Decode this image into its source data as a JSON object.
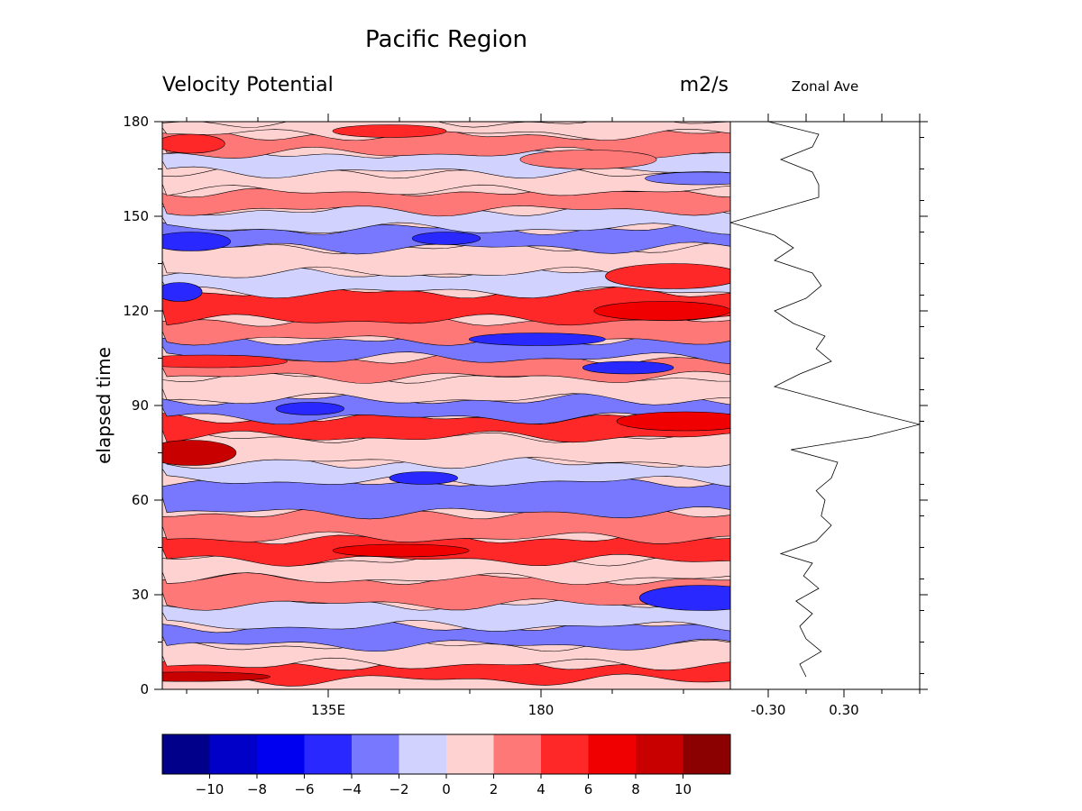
{
  "chart_data": [
    {
      "type": "heatmap",
      "title": "Pacific Region",
      "left_subtitle": "Velocity Potential",
      "units": "m2/s",
      "ylabel": "elapsed time",
      "ylim": [
        0,
        180
      ],
      "yticks": [
        "0",
        "30",
        "60",
        "90",
        "120",
        "150",
        "180"
      ],
      "xticks": [
        "135E",
        "180"
      ],
      "colorbar": {
        "levels": [
          -12,
          -10,
          -8,
          -6,
          -4,
          -2,
          0,
          2,
          4,
          6,
          8,
          10,
          12
        ],
        "labels": [
          "−10",
          "−8",
          "−6",
          "−4",
          "−2",
          "0",
          "2",
          "4",
          "6",
          "8",
          "10"
        ],
        "colors": [
          "#00008b",
          "#0000c8",
          "#0000f0",
          "#2828ff",
          "#7878ff",
          "#d2d2ff",
          "#ffd2d2",
          "#ff7878",
          "#ff2828",
          "#f00000",
          "#c80000",
          "#8b0000"
        ]
      },
      "bands": [
        {
          "t0": 3,
          "t1": 8,
          "v": 5
        },
        {
          "t0": 8,
          "t1": 14,
          "v": 1
        },
        {
          "t0": 14,
          "t1": 20,
          "v": -3
        },
        {
          "t0": 20,
          "t1": 27,
          "v": -1
        },
        {
          "t0": 27,
          "t1": 35,
          "v": 3
        },
        {
          "t0": 35,
          "t1": 41,
          "v": 1
        },
        {
          "t0": 41,
          "t1": 48,
          "v": 5
        },
        {
          "t0": 48,
          "t1": 56,
          "v": 3
        },
        {
          "t0": 56,
          "t1": 66,
          "v": -3
        },
        {
          "t0": 66,
          "t1": 72,
          "v": -1
        },
        {
          "t0": 72,
          "t1": 80,
          "v": 1
        },
        {
          "t0": 80,
          "t1": 86,
          "v": 5
        },
        {
          "t0": 86,
          "t1": 92,
          "v": -3
        },
        {
          "t0": 92,
          "t1": 99,
          "v": 1
        },
        {
          "t0": 99,
          "t1": 105,
          "v": 3
        },
        {
          "t0": 105,
          "t1": 111,
          "v": -3
        },
        {
          "t0": 111,
          "t1": 117,
          "v": 3
        },
        {
          "t0": 117,
          "t1": 126,
          "v": 5
        },
        {
          "t0": 126,
          "t1": 132,
          "v": -1
        },
        {
          "t0": 132,
          "t1": 140,
          "v": 1
        },
        {
          "t0": 140,
          "t1": 146,
          "v": -3
        },
        {
          "t0": 146,
          "t1": 152,
          "v": -1
        },
        {
          "t0": 152,
          "t1": 158,
          "v": 3
        },
        {
          "t0": 158,
          "t1": 164,
          "v": 1
        },
        {
          "t0": 164,
          "t1": 170,
          "v": -1
        },
        {
          "t0": 170,
          "t1": 176,
          "v": 3
        },
        {
          "t0": 176,
          "t1": 180,
          "v": 1
        }
      ],
      "blobs": [
        {
          "x": 0.05,
          "t": 75,
          "rx": 0.08,
          "rt": 4,
          "v": 9
        },
        {
          "x": 0.92,
          "t": 85,
          "rx": 0.12,
          "rt": 3,
          "v": 7
        },
        {
          "x": 0.88,
          "t": 120,
          "rx": 0.12,
          "rt": 3,
          "v": 7
        },
        {
          "x": 0.9,
          "t": 131,
          "rx": 0.12,
          "rt": 4,
          "v": 5
        },
        {
          "x": 0.03,
          "t": 126,
          "rx": 0.04,
          "rt": 3,
          "v": -5
        },
        {
          "x": 0.05,
          "t": 142,
          "rx": 0.07,
          "rt": 3,
          "v": -5
        },
        {
          "x": 0.5,
          "t": 143,
          "rx": 0.06,
          "rt": 2,
          "v": -5
        },
        {
          "x": 0.66,
          "t": 111,
          "rx": 0.12,
          "rt": 2,
          "v": -5
        },
        {
          "x": 0.82,
          "t": 102,
          "rx": 0.08,
          "rt": 2,
          "v": -5
        },
        {
          "x": 0.26,
          "t": 89,
          "rx": 0.06,
          "rt": 2,
          "v": -5
        },
        {
          "x": 0.46,
          "t": 67,
          "rx": 0.06,
          "rt": 2,
          "v": -5
        },
        {
          "x": 0.95,
          "t": 29,
          "rx": 0.11,
          "rt": 4,
          "v": -5
        },
        {
          "x": 0.95,
          "t": 162,
          "rx": 0.1,
          "rt": 2,
          "v": -3
        },
        {
          "x": 0.42,
          "t": 44,
          "rx": 0.12,
          "rt": 2,
          "v": 7
        },
        {
          "x": 0.05,
          "t": 173,
          "rx": 0.06,
          "rt": 3,
          "v": 5
        },
        {
          "x": 0.4,
          "t": 177,
          "rx": 0.1,
          "rt": 2,
          "v": 5
        },
        {
          "x": 0.75,
          "t": 168,
          "rx": 0.12,
          "rt": 3,
          "v": 3
        },
        {
          "x": 0.08,
          "t": 104,
          "rx": 0.14,
          "rt": 2,
          "v": 5
        },
        {
          "x": 0.05,
          "t": 4,
          "rx": 0.14,
          "rt": 1.5,
          "v": 8
        }
      ],
      "zonal_ave": {
        "title": "Zonal Ave",
        "xticks": [
          "-0.30",
          "0.30"
        ],
        "xlim": [
          -0.6,
          0.9
        ],
        "profile": [
          [
            4,
            0.0
          ],
          [
            8,
            -0.05
          ],
          [
            12,
            0.12
          ],
          [
            16,
            0.0
          ],
          [
            20,
            -0.05
          ],
          [
            24,
            0.05
          ],
          [
            28,
            -0.08
          ],
          [
            32,
            0.1
          ],
          [
            36,
            -0.02
          ],
          [
            40,
            0.05
          ],
          [
            43,
            -0.2
          ],
          [
            47,
            0.08
          ],
          [
            52,
            0.2
          ],
          [
            55,
            0.12
          ],
          [
            60,
            0.15
          ],
          [
            63,
            0.08
          ],
          [
            67,
            0.2
          ],
          [
            72,
            0.25
          ],
          [
            76,
            -0.12
          ],
          [
            80,
            0.5
          ],
          [
            84,
            0.9
          ],
          [
            88,
            0.5
          ],
          [
            92,
            0.12
          ],
          [
            96,
            -0.25
          ],
          [
            100,
            -0.05
          ],
          [
            104,
            0.2
          ],
          [
            108,
            0.08
          ],
          [
            112,
            0.15
          ],
          [
            116,
            -0.1
          ],
          [
            120,
            -0.25
          ],
          [
            124,
            0.0
          ],
          [
            128,
            0.12
          ],
          [
            132,
            0.05
          ],
          [
            136,
            -0.25
          ],
          [
            140,
            -0.1
          ],
          [
            144,
            -0.25
          ],
          [
            148,
            -0.6
          ],
          [
            152,
            -0.25
          ],
          [
            156,
            0.1
          ],
          [
            160,
            0.1
          ],
          [
            164,
            0.05
          ],
          [
            168,
            -0.2
          ],
          [
            172,
            0.05
          ],
          [
            176,
            0.1
          ],
          [
            180,
            -0.3
          ]
        ]
      }
    }
  ]
}
